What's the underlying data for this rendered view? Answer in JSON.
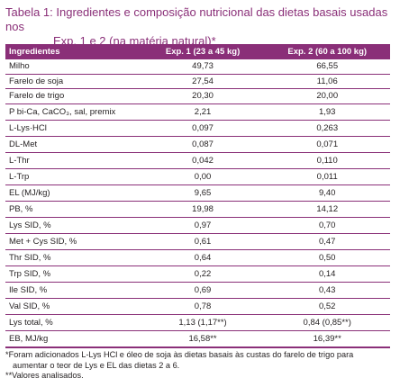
{
  "caption": {
    "line1": "Tabela 1: Ingredientes e composição nutricional das dietas basais usadas nos",
    "line2": "Exp. 1 e 2 (na matéria natural)*"
  },
  "table": {
    "headers": [
      "Ingredientes",
      "Exp. 1 (23 a 45 kg)",
      "Exp. 2 (60 a 100 kg)"
    ],
    "rows": [
      [
        "Milho",
        "49,73",
        "66,55"
      ],
      [
        "Farelo de soja",
        "27,54",
        "11,06"
      ],
      [
        "Farelo de trigo",
        "20,30",
        "20,00"
      ],
      [
        "P bi-Ca, CaCO₃, sal, premix",
        "2,21",
        "1,93"
      ],
      [
        "L-Lys·HCl",
        "0,097",
        "0,263"
      ],
      [
        "DL-Met",
        "0,087",
        "0,071"
      ],
      [
        "L-Thr",
        "0,042",
        "0,110"
      ],
      [
        "L-Trp",
        "0,00",
        "0,011"
      ],
      [
        "EL (MJ/kg)",
        "9,65",
        "9,40"
      ],
      [
        "PB, %",
        "19,98",
        "14,12"
      ],
      [
        "Lys SID, %",
        "0,97",
        "0,70"
      ],
      [
        "Met + Cys SID, %",
        "0,61",
        "0,47"
      ],
      [
        "Thr SID, %",
        "0,64",
        "0,50"
      ],
      [
        "Trp SID, %",
        "0,22",
        "0,14"
      ],
      [
        "Ile SID, %",
        "0,69",
        "0,43"
      ],
      [
        "Val SID, %",
        "0,78",
        "0,52"
      ],
      [
        "Lys total, %",
        "1,13 (1,17**)",
        "0,84 (0,85**)"
      ],
      [
        "EB, MJ/kg",
        "16,58**",
        "16,39**"
      ]
    ]
  },
  "footnotes": {
    "note1_line1": "*Foram adicionados L-Lys HCl e óleo de soja às dietas basais às custas do farelo de trigo para",
    "note1_line2": "aumentar o teor de Lys e EL das dietas 2 a 6.",
    "note2": "**Valores analisados."
  }
}
